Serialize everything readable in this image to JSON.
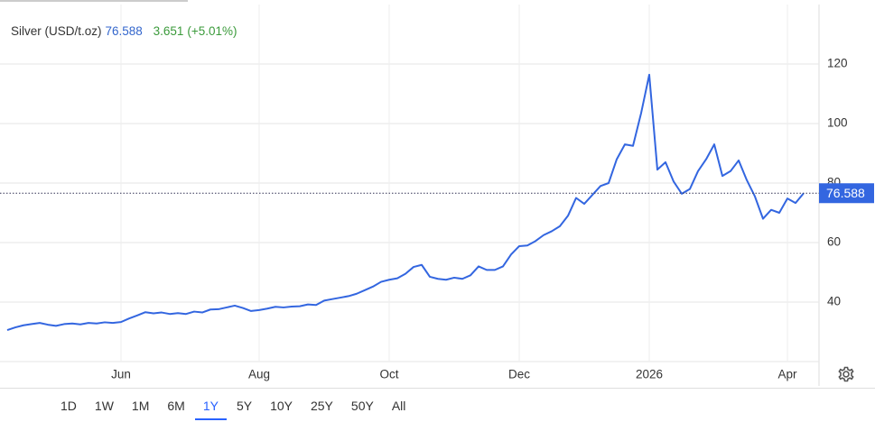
{
  "chart_data": {
    "type": "line",
    "title": "Silver (USD/t.oz)",
    "change": "3.651",
    "change_pct": "(+5.01%)",
    "categories": [
      null,
      null,
      null,
      null,
      null,
      null,
      null,
      null,
      null,
      null,
      null,
      null,
      null,
      null,
      "Jun",
      null,
      null,
      null,
      null,
      null,
      null,
      null,
      null,
      null,
      null,
      null,
      null,
      null,
      null,
      null,
      null,
      "Aug",
      null,
      null,
      null,
      null,
      null,
      null,
      null,
      null,
      null,
      null,
      null,
      null,
      null,
      null,
      null,
      "Oct",
      null,
      null,
      null,
      null,
      null,
      null,
      null,
      null,
      null,
      null,
      null,
      null,
      null,
      null,
      null,
      "Dec",
      null,
      null,
      null,
      null,
      null,
      null,
      null,
      null,
      null,
      null,
      null,
      null,
      null,
      null,
      null,
      "2026",
      null,
      null,
      null,
      null,
      null,
      null,
      null,
      null,
      null,
      null,
      null,
      null,
      null,
      null,
      null,
      null,
      "Apr",
      null,
      null
    ],
    "series": [
      {
        "name": "Silver",
        "color": "#3366e0",
        "values": [
          30.6,
          31.5,
          32.2,
          32.6,
          33.0,
          32.4,
          32.0,
          32.6,
          32.8,
          32.5,
          33.0,
          32.8,
          33.2,
          33.0,
          33.3,
          34.5,
          35.5,
          36.6,
          36.2,
          36.5,
          36.0,
          36.3,
          36.0,
          36.8,
          36.5,
          37.5,
          37.6,
          38.2,
          38.8,
          38.0,
          37.0,
          37.3,
          37.8,
          38.4,
          38.2,
          38.5,
          38.6,
          39.2,
          39.0,
          40.5,
          41.0,
          41.5,
          42.0,
          42.8,
          44.0,
          45.2,
          46.8,
          47.5,
          48.0,
          49.5,
          51.8,
          52.5,
          48.5,
          47.8,
          47.5,
          48.2,
          47.8,
          49.0,
          52.0,
          50.8,
          50.8,
          52.0,
          56.0,
          58.8,
          59.0,
          60.5,
          62.5,
          63.8,
          65.5,
          69.0,
          75.0,
          73.0,
          76.0,
          79.0,
          80.0,
          88.0,
          93.0,
          92.5,
          103.5,
          116.4,
          84.5,
          87.0,
          80.5,
          76.4,
          78.0,
          84.0,
          88.0,
          93.0,
          82.4,
          84.0,
          87.6,
          81.0,
          75.5,
          68.0,
          71.0,
          70.0,
          74.8,
          73.3,
          76.588
        ]
      }
    ],
    "ylim": [
      20,
      140
    ],
    "yticks": [
      40,
      60,
      80,
      100,
      120
    ],
    "grid": true
  },
  "toolbar": {
    "ranges": [
      "1D",
      "1W",
      "1M",
      "6M",
      "1Y",
      "5Y",
      "10Y",
      "25Y",
      "50Y",
      "All"
    ],
    "selected": 4
  }
}
